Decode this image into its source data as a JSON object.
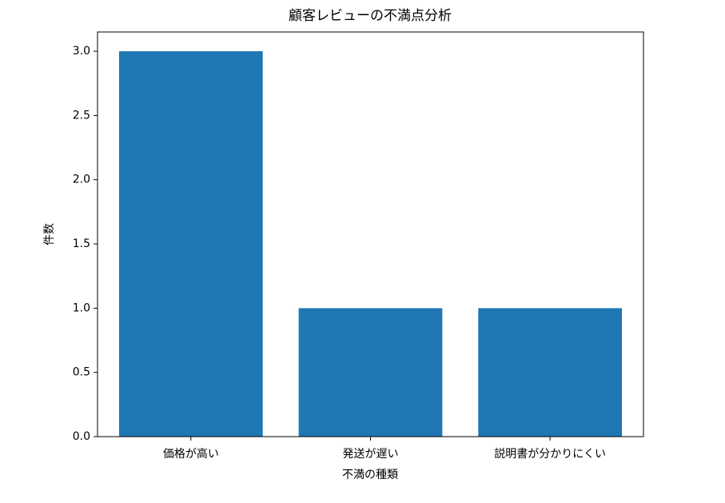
{
  "chart_data": {
    "type": "bar",
    "title": "顧客レビューの不満点分析",
    "x_label": "不満の種類",
    "y_label": "件数",
    "categories": [
      "価格が高い",
      "発送が遅い",
      "説明書が分かりにくい"
    ],
    "values": [
      3,
      1,
      1
    ],
    "color": "#1f77b4",
    "ylim": [
      0,
      3.15
    ],
    "yticks": [
      {
        "value": 0,
        "label": "0.0"
      },
      0.5,
      {
        "value": 1,
        "label": "1.0"
      },
      1.5,
      {
        "value": 2,
        "label": "2.0"
      },
      2.5,
      {
        "value": 3,
        "label": "3.0"
      }
    ],
    "grid": false
  }
}
